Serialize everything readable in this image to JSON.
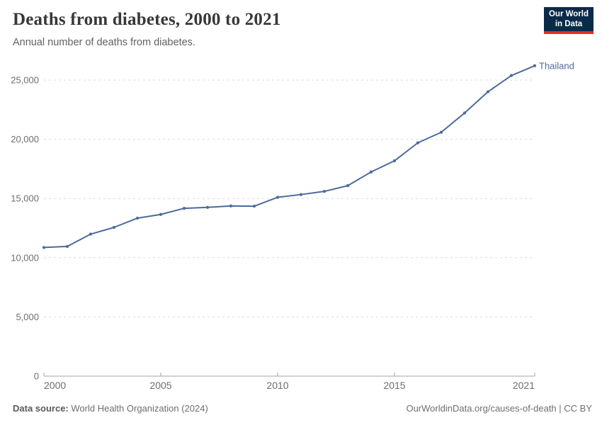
{
  "header": {
    "title": "Deaths from diabetes, 2000 to 2021",
    "subtitle": "Annual number of deaths from diabetes.",
    "logo": {
      "line1": "Our World",
      "line2": "in Data"
    }
  },
  "chart_data": {
    "type": "line",
    "title": "Deaths from diabetes, 2000 to 2021",
    "x": [
      2000,
      2001,
      2002,
      2003,
      2004,
      2005,
      2006,
      2007,
      2008,
      2009,
      2010,
      2011,
      2012,
      2013,
      2014,
      2015,
      2016,
      2017,
      2018,
      2019,
      2020,
      2021
    ],
    "series": [
      {
        "name": "Thailand",
        "color": "#4C6A9C",
        "values": [
          10860,
          10950,
          11990,
          12560,
          13340,
          13650,
          14170,
          14250,
          14370,
          14350,
          15100,
          15330,
          15600,
          16080,
          17240,
          18180,
          19700,
          20590,
          22220,
          24010,
          25380,
          26210
        ]
      }
    ],
    "x_ticks": [
      2000,
      2005,
      2010,
      2015,
      2021
    ],
    "y_ticks": [
      0,
      5000,
      10000,
      15000,
      20000,
      25000
    ],
    "ylim": [
      0,
      26500
    ],
    "xlabel": "",
    "ylabel": "",
    "grid": "horizontal-dashed",
    "legend_position": "end-of-line-label",
    "end_label": "Thailand"
  },
  "footer": {
    "source_label": "Data source:",
    "source_text": "World Health Organization (2024)",
    "credit": "OurWorldinData.org/causes-of-death | CC BY"
  },
  "colors": {
    "line": "#4C6A9C",
    "logo_bg": "#0b2a4a",
    "logo_accent": "#e22d21",
    "grid": "#dcdcdc",
    "axis": "#a3a3a3",
    "tick_label": "#6e6e6e",
    "title": "#383838",
    "subtitle": "#616161"
  }
}
